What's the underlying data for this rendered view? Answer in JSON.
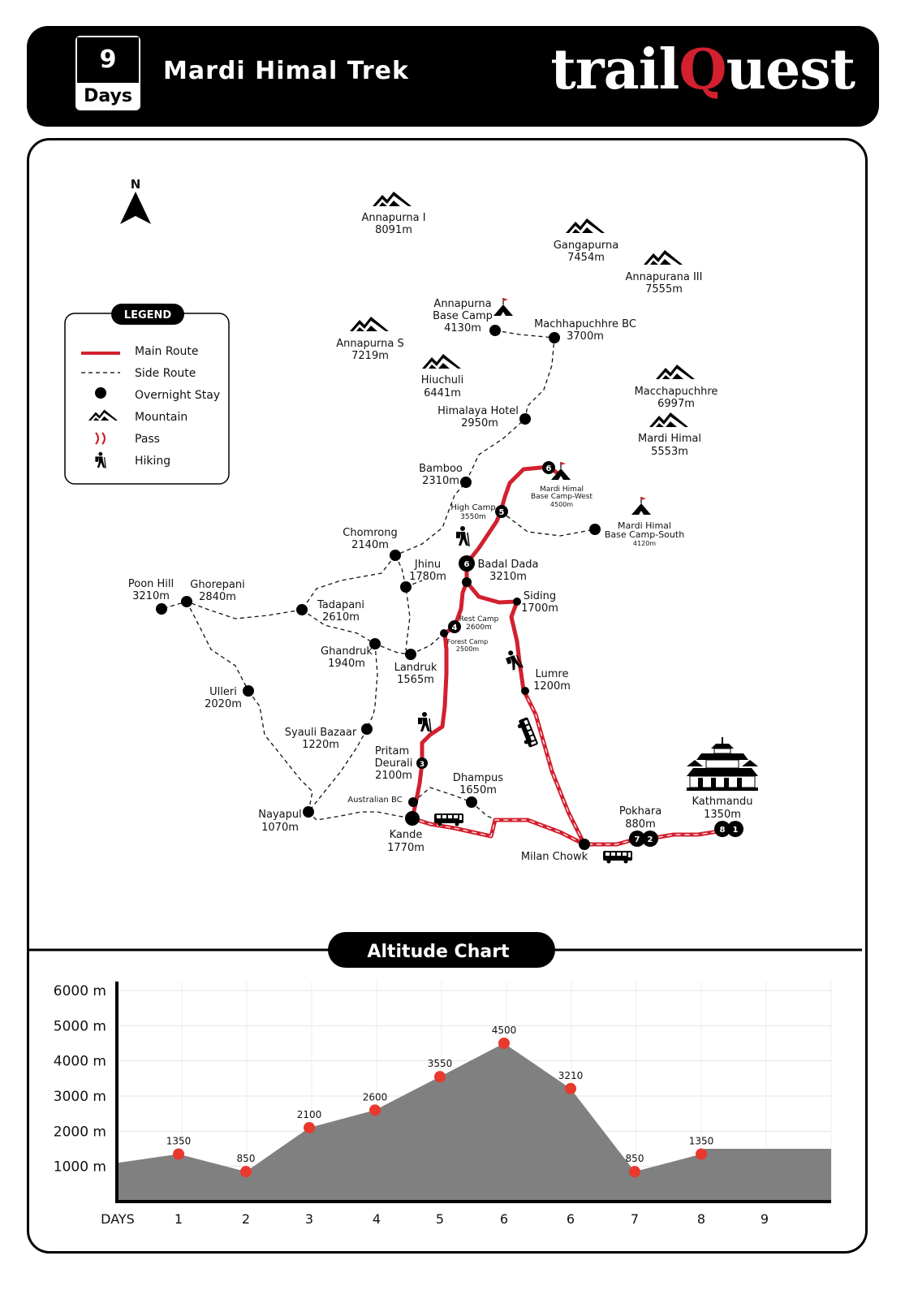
{
  "header": {
    "days_number": "9",
    "days_label": "Days",
    "title": "Mardi Himal Trek",
    "brand_prefix": "trail",
    "brand_q": "Q",
    "brand_suffix": "uest"
  },
  "colors": {
    "main_route": "#d2202f",
    "accent": "#d2202f",
    "black": "#000000",
    "chart_fill": "#808080",
    "point": "#e8392c"
  },
  "north": "N",
  "legend": {
    "title": "LEGEND",
    "items": [
      "Main Route",
      "Side Route",
      "Overnight Stay",
      "Mountain",
      "Pass",
      "Hiking"
    ]
  },
  "mountains": [
    {
      "name": "Annapurna I",
      "alt": "8091m"
    },
    {
      "name": "Gangapurna",
      "alt": "7454m"
    },
    {
      "name": "Annapurana III",
      "alt": "7555m"
    },
    {
      "name": "Annapurna S",
      "alt": "7219m"
    },
    {
      "name": "Hiuchuli",
      "alt": "6441m"
    },
    {
      "name": "Macchapuchhre",
      "alt": "6997m"
    },
    {
      "name": "Mardi Himal",
      "alt": "5553m"
    }
  ],
  "places": [
    {
      "name": "Annapurna",
      "name2": "Base Camp",
      "alt": "4130m"
    },
    {
      "name": "Machhapuchhre BC",
      "alt": "3700m"
    },
    {
      "name": "Himalaya Hotel",
      "alt": "2950m"
    },
    {
      "name": "Bamboo",
      "alt": "2310m"
    },
    {
      "name": "Mardi Himal",
      "name2": "Base Camp-West",
      "alt": "4500m"
    },
    {
      "name": "High Camp",
      "alt": "3550m"
    },
    {
      "name": "Mardi Himal",
      "name2": "Base Camp-South",
      "alt": "4120m"
    },
    {
      "name": "Chomrong",
      "alt": "2140m"
    },
    {
      "name": "Jhinu",
      "alt": "1780m"
    },
    {
      "name": "Badal Dada",
      "alt": "3210m"
    },
    {
      "name": "Poon Hill",
      "alt": "3210m"
    },
    {
      "name": "Ghorepani",
      "alt": "2840m"
    },
    {
      "name": "Tadapani",
      "alt": "2610m"
    },
    {
      "name": "Siding",
      "alt": "1700m"
    },
    {
      "name": "Rest Camp",
      "alt": "2600m"
    },
    {
      "name": "Forest Camp",
      "alt": "2500m"
    },
    {
      "name": "Ghandruk",
      "alt": "1940m"
    },
    {
      "name": "Landruk",
      "alt": "1565m"
    },
    {
      "name": "Lumre",
      "alt": "1200m"
    },
    {
      "name": "Ulleri",
      "alt": "2020m"
    },
    {
      "name": "Syauli Bazaar",
      "alt": "1220m"
    },
    {
      "name": "Pritam",
      "name2": "Deurali",
      "alt": "2100m"
    },
    {
      "name": "Dhampus",
      "alt": "1650m"
    },
    {
      "name": "Australian BC"
    },
    {
      "name": "Nayapul",
      "alt": "1070m"
    },
    {
      "name": "Kande",
      "alt": "1770m"
    },
    {
      "name": "Pokhara",
      "alt": "880m"
    },
    {
      "name": "Kathmandu",
      "alt": "1350m"
    },
    {
      "name": "Milan Chowk"
    }
  ],
  "day_markers": [
    "6",
    "5",
    "6",
    "4",
    "3",
    "7",
    "2",
    "8",
    "1"
  ],
  "altitude_chart_title": "Altitude Chart",
  "chart_data": {
    "type": "area",
    "title": "Altitude Chart",
    "xlabel": "DAYS",
    "x_ticks": [
      "1",
      "2",
      "3",
      "4",
      "5",
      "6",
      "6",
      "7",
      "8",
      "9"
    ],
    "values": [
      1350,
      850,
      2100,
      2600,
      3550,
      4500,
      3210,
      850,
      1350
    ],
    "value_labels": [
      "1350",
      "850",
      "2100",
      "2600",
      "3550",
      "4500",
      "3210",
      "850",
      "1350"
    ],
    "start_value": 1100,
    "end_value": 1500,
    "y_ticks": [
      "1000 m",
      "2000 m",
      "3000 m",
      "4000 m",
      "5000 m",
      "6000 m"
    ],
    "ylim": [
      0,
      6000
    ],
    "grid": true
  }
}
